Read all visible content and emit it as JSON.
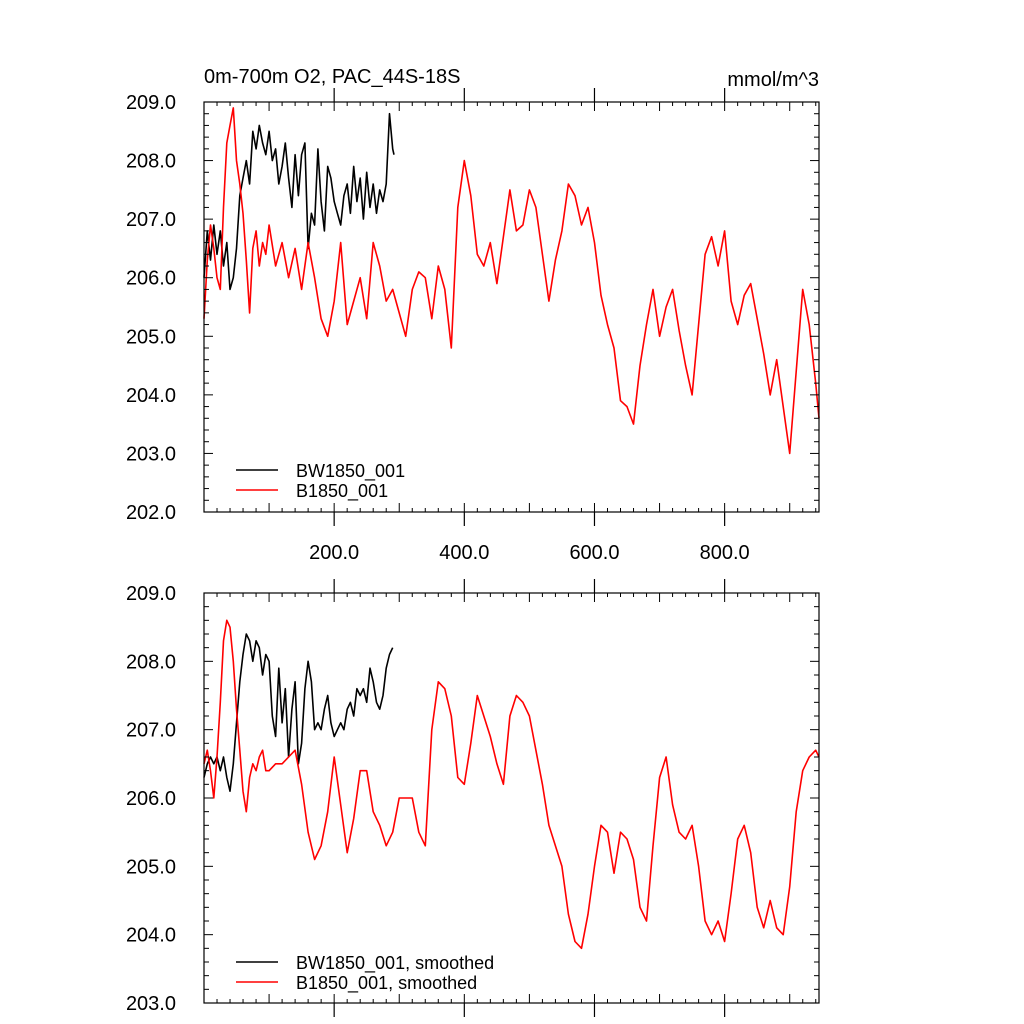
{
  "figure": {
    "title_left": "0m-700m O2, PAC_44S-18S",
    "title_right": "mmol/m^3"
  },
  "chart_data": [
    {
      "type": "line",
      "title": "0m-700m O2, PAC_44S-18S",
      "units": "mmol/m^3",
      "xlim": [
        0,
        945
      ],
      "ylim": [
        202,
        209
      ],
      "xticks": [
        200,
        400,
        600,
        800
      ],
      "xtick_labels": [
        "200.0",
        "400.0",
        "600.0",
        "800.0"
      ],
      "yticks": [
        202,
        203,
        204,
        205,
        206,
        207,
        208,
        209
      ],
      "ytick_labels": [
        "202.0",
        "203.0",
        "204.0",
        "205.0",
        "206.0",
        "207.0",
        "208.0",
        "209.0"
      ],
      "grid": false,
      "legend": "bottom-left",
      "series": [
        {
          "name": "BW1850_001",
          "color": "#000000",
          "x": [
            0,
            5,
            10,
            15,
            20,
            25,
            30,
            35,
            40,
            45,
            50,
            55,
            60,
            65,
            70,
            75,
            80,
            85,
            90,
            95,
            100,
            105,
            110,
            115,
            120,
            125,
            130,
            135,
            140,
            145,
            150,
            155,
            160,
            165,
            170,
            175,
            180,
            185,
            190,
            195,
            200,
            205,
            210,
            215,
            220,
            225,
            230,
            235,
            240,
            245,
            250,
            255,
            260,
            265,
            270,
            275,
            280,
            285,
            290,
            292
          ],
          "y": [
            206.0,
            206.8,
            206.3,
            206.9,
            206.4,
            206.8,
            206.2,
            206.6,
            205.8,
            206.0,
            206.5,
            207.4,
            207.7,
            208.0,
            207.6,
            208.5,
            208.2,
            208.6,
            208.3,
            208.1,
            208.5,
            208.0,
            208.2,
            207.6,
            207.9,
            208.3,
            207.7,
            207.2,
            208.1,
            207.4,
            208.1,
            208.3,
            206.5,
            207.1,
            206.9,
            208.2,
            207.3,
            206.8,
            207.9,
            207.7,
            207.3,
            207.1,
            206.9,
            207.4,
            207.6,
            207.1,
            207.9,
            207.3,
            207.7,
            207.0,
            207.8,
            207.2,
            207.6,
            207.1,
            207.5,
            207.3,
            207.6,
            208.8,
            208.2,
            208.1
          ]
        },
        {
          "name": "B1850_001",
          "color": "#ff0000",
          "x": [
            0,
            5,
            10,
            15,
            20,
            25,
            30,
            35,
            40,
            45,
            50,
            55,
            60,
            65,
            70,
            75,
            80,
            85,
            90,
            95,
            100,
            110,
            120,
            130,
            140,
            150,
            160,
            170,
            180,
            190,
            200,
            210,
            220,
            230,
            240,
            250,
            260,
            270,
            280,
            290,
            300,
            310,
            320,
            330,
            340,
            350,
            360,
            370,
            380,
            390,
            400,
            410,
            420,
            430,
            440,
            450,
            460,
            470,
            480,
            490,
            500,
            510,
            520,
            530,
            540,
            550,
            560,
            570,
            580,
            590,
            600,
            610,
            620,
            630,
            640,
            650,
            660,
            670,
            680,
            690,
            700,
            710,
            720,
            730,
            740,
            750,
            760,
            770,
            780,
            790,
            800,
            810,
            820,
            830,
            840,
            850,
            860,
            870,
            880,
            890,
            900,
            910,
            920,
            930,
            940,
            945
          ],
          "y": [
            205.3,
            206.3,
            206.9,
            206.5,
            206.0,
            205.8,
            207.2,
            208.3,
            208.6,
            208.9,
            208.0,
            207.6,
            207.1,
            206.3,
            205.4,
            206.5,
            206.8,
            206.2,
            206.6,
            206.4,
            206.9,
            206.2,
            206.6,
            206.0,
            206.5,
            205.8,
            206.6,
            206.0,
            205.3,
            205.0,
            205.6,
            206.6,
            205.2,
            205.6,
            206.0,
            205.3,
            206.6,
            206.2,
            205.6,
            205.8,
            205.4,
            205.0,
            205.8,
            206.1,
            206.0,
            205.3,
            206.2,
            205.8,
            204.8,
            207.2,
            208.0,
            207.4,
            206.4,
            206.2,
            206.6,
            205.9,
            206.7,
            207.5,
            206.8,
            206.9,
            207.5,
            207.2,
            206.4,
            205.6,
            206.3,
            206.8,
            207.6,
            207.4,
            206.9,
            207.2,
            206.6,
            205.7,
            205.2,
            204.8,
            203.9,
            203.8,
            203.5,
            204.5,
            205.2,
            205.8,
            205.0,
            205.5,
            205.8,
            205.1,
            204.5,
            204.0,
            205.2,
            206.4,
            206.7,
            206.2,
            206.8,
            205.6,
            205.2,
            205.7,
            205.9,
            205.3,
            204.7,
            204.0,
            204.6,
            203.8,
            203.0,
            204.4,
            205.8,
            205.2,
            204.2,
            203.6
          ]
        }
      ]
    },
    {
      "type": "line",
      "xlim": [
        0,
        945
      ],
      "ylim": [
        203,
        209
      ],
      "xticks": [
        200,
        400,
        600,
        800
      ],
      "yticks": [
        203,
        204,
        205,
        206,
        207,
        208,
        209
      ],
      "ytick_labels": [
        "203.0",
        "204.0",
        "205.0",
        "206.0",
        "207.0",
        "208.0",
        "209.0"
      ],
      "grid": false,
      "legend": "bottom-left",
      "series": [
        {
          "name": "BW1850_001, smoothed",
          "color": "#000000",
          "x": [
            0,
            5,
            10,
            15,
            20,
            25,
            30,
            35,
            40,
            45,
            50,
            55,
            60,
            65,
            70,
            75,
            80,
            85,
            90,
            95,
            100,
            105,
            110,
            115,
            120,
            125,
            130,
            135,
            140,
            145,
            150,
            155,
            160,
            165,
            170,
            175,
            180,
            185,
            190,
            195,
            200,
            205,
            210,
            215,
            220,
            225,
            230,
            235,
            240,
            245,
            250,
            255,
            260,
            265,
            270,
            275,
            280,
            285,
            290
          ],
          "y": [
            206.3,
            206.5,
            206.6,
            206.5,
            206.6,
            206.4,
            206.6,
            206.3,
            206.1,
            206.5,
            207.1,
            207.7,
            208.1,
            208.4,
            208.3,
            208.0,
            208.3,
            208.2,
            207.8,
            208.1,
            208.0,
            207.2,
            206.9,
            207.9,
            207.1,
            207.6,
            206.6,
            207.3,
            207.7,
            206.5,
            206.8,
            207.6,
            208.0,
            207.7,
            207.0,
            207.1,
            207.0,
            207.3,
            207.5,
            207.1,
            206.9,
            207.0,
            207.1,
            207.0,
            207.3,
            207.4,
            207.2,
            207.6,
            207.5,
            207.6,
            207.4,
            207.9,
            207.7,
            207.4,
            207.3,
            207.5,
            207.9,
            208.1,
            208.2
          ]
        },
        {
          "name": "B1850_001, smoothed",
          "color": "#ff0000",
          "x": [
            0,
            5,
            10,
            15,
            20,
            25,
            30,
            35,
            40,
            45,
            50,
            55,
            60,
            65,
            70,
            75,
            80,
            85,
            90,
            95,
            100,
            110,
            120,
            130,
            140,
            150,
            160,
            170,
            180,
            190,
            200,
            210,
            220,
            230,
            240,
            250,
            260,
            270,
            280,
            290,
            300,
            310,
            320,
            330,
            340,
            350,
            360,
            370,
            380,
            390,
            400,
            410,
            420,
            430,
            440,
            450,
            460,
            470,
            480,
            490,
            500,
            510,
            520,
            530,
            540,
            550,
            560,
            570,
            580,
            590,
            600,
            610,
            620,
            630,
            640,
            650,
            660,
            670,
            680,
            690,
            700,
            710,
            720,
            730,
            740,
            750,
            760,
            770,
            780,
            790,
            800,
            810,
            820,
            830,
            840,
            850,
            860,
            870,
            880,
            890,
            900,
            910,
            920,
            930,
            940,
            945
          ],
          "y": [
            206.5,
            206.7,
            206.4,
            206.0,
            206.6,
            207.4,
            208.3,
            208.6,
            208.5,
            208.0,
            207.3,
            206.7,
            206.1,
            205.8,
            206.3,
            206.5,
            206.4,
            206.6,
            206.7,
            206.4,
            206.4,
            206.5,
            206.5,
            206.6,
            206.7,
            206.2,
            205.5,
            205.1,
            205.3,
            205.8,
            206.6,
            205.9,
            205.2,
            205.7,
            206.4,
            206.4,
            205.8,
            205.6,
            205.3,
            205.5,
            206.0,
            206.0,
            206.0,
            205.5,
            205.3,
            207.0,
            207.7,
            207.6,
            207.2,
            206.3,
            206.2,
            206.8,
            207.5,
            207.2,
            206.9,
            206.5,
            206.2,
            207.2,
            207.5,
            207.4,
            207.2,
            206.7,
            206.2,
            205.6,
            205.3,
            205.0,
            204.3,
            203.9,
            203.8,
            204.3,
            205.0,
            205.6,
            205.5,
            204.9,
            205.5,
            205.4,
            205.1,
            204.4,
            204.2,
            205.3,
            206.3,
            206.6,
            205.9,
            205.5,
            205.4,
            205.6,
            205.0,
            204.2,
            204.0,
            204.2,
            203.9,
            204.6,
            205.4,
            205.6,
            205.2,
            204.4,
            204.1,
            204.5,
            204.1,
            204.0,
            204.7,
            205.8,
            206.4,
            206.6,
            206.7,
            206.6
          ]
        }
      ]
    }
  ]
}
